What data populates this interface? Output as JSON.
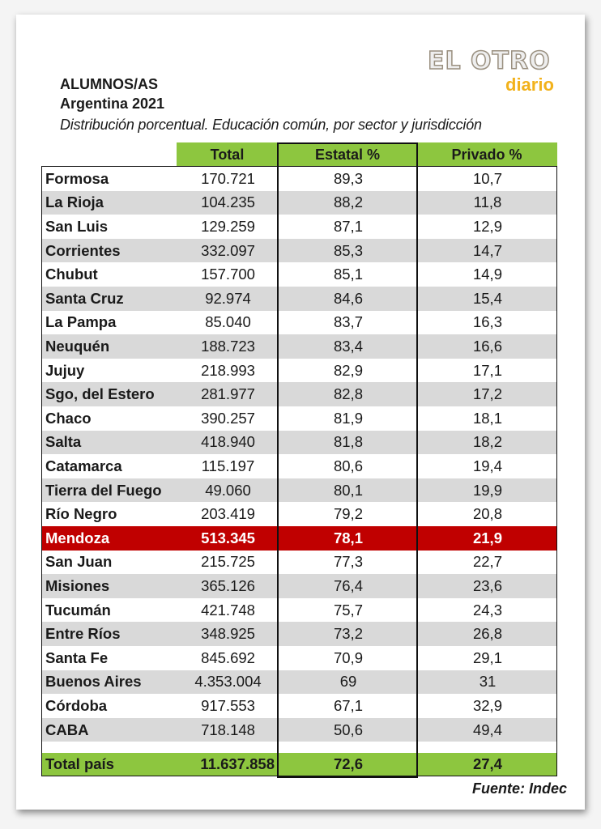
{
  "header": {
    "title": "ALUMNOS/AS",
    "subtitle": "Argentina 2021",
    "description": "Distribución porcentual. Educación común, por sector y jurisdicción"
  },
  "logo": {
    "top": "EL OTRO",
    "bottom": "diario"
  },
  "colors": {
    "header_green": "#8dc63f",
    "highlight_red": "#c00000",
    "alt_row_gray": "#d9d9d9"
  },
  "table": {
    "columns": [
      "Total",
      "Estatal %",
      "Privado %"
    ],
    "rows": [
      {
        "name": "Formosa",
        "total": "170.721",
        "estatal": "89,3",
        "privado": "10,7"
      },
      {
        "name": "La Rioja",
        "total": "104.235",
        "estatal": "88,2",
        "privado": "11,8"
      },
      {
        "name": "San Luis",
        "total": "129.259",
        "estatal": "87,1",
        "privado": "12,9"
      },
      {
        "name": "Corrientes",
        "total": "332.097",
        "estatal": "85,3",
        "privado": "14,7"
      },
      {
        "name": "Chubut",
        "total": "157.700",
        "estatal": "85,1",
        "privado": "14,9"
      },
      {
        "name": "Santa Cruz",
        "total": "92.974",
        "estatal": "84,6",
        "privado": "15,4"
      },
      {
        "name": "La Pampa",
        "total": "85.040",
        "estatal": "83,7",
        "privado": "16,3"
      },
      {
        "name": "Neuquén",
        "total": "188.723",
        "estatal": "83,4",
        "privado": "16,6"
      },
      {
        "name": "Jujuy",
        "total": "218.993",
        "estatal": "82,9",
        "privado": "17,1"
      },
      {
        "name": "Sgo, del Estero",
        "total": "281.977",
        "estatal": "82,8",
        "privado": "17,2"
      },
      {
        "name": "Chaco",
        "total": "390.257",
        "estatal": "81,9",
        "privado": "18,1"
      },
      {
        "name": "Salta",
        "total": "418.940",
        "estatal": "81,8",
        "privado": "18,2"
      },
      {
        "name": "Catamarca",
        "total": "115.197",
        "estatal": "80,6",
        "privado": "19,4"
      },
      {
        "name": "Tierra del Fuego",
        "total": "49.060",
        "estatal": "80,1",
        "privado": "19,9"
      },
      {
        "name": "Río Negro",
        "total": "203.419",
        "estatal": "79,2",
        "privado": "20,8"
      },
      {
        "name": "Mendoza",
        "total": "513.345",
        "estatal": "78,1",
        "privado": "21,9",
        "highlight": true
      },
      {
        "name": "San Juan",
        "total": "215.725",
        "estatal": "77,3",
        "privado": "22,7"
      },
      {
        "name": "Misiones",
        "total": "365.126",
        "estatal": "76,4",
        "privado": "23,6"
      },
      {
        "name": "Tucumán",
        "total": "421.748",
        "estatal": "75,7",
        "privado": "24,3"
      },
      {
        "name": "Entre Ríos",
        "total": "348.925",
        "estatal": "73,2",
        "privado": "26,8"
      },
      {
        "name": "Santa Fe",
        "total": "845.692",
        "estatal": "70,9",
        "privado": "29,1"
      },
      {
        "name": "Buenos Aires",
        "total": "4.353.004",
        "estatal": "69",
        "privado": "31"
      },
      {
        "name": "Córdoba",
        "total": "917.553",
        "estatal": "67,1",
        "privado": "32,9"
      },
      {
        "name": "CABA",
        "total": "718.148",
        "estatal": "50,6",
        "privado": "49,4"
      }
    ],
    "total_row": {
      "name": "Total país",
      "total": "11.637.858",
      "estatal": "72,6",
      "privado": "27,4"
    }
  },
  "source": "Fuente: Indec"
}
